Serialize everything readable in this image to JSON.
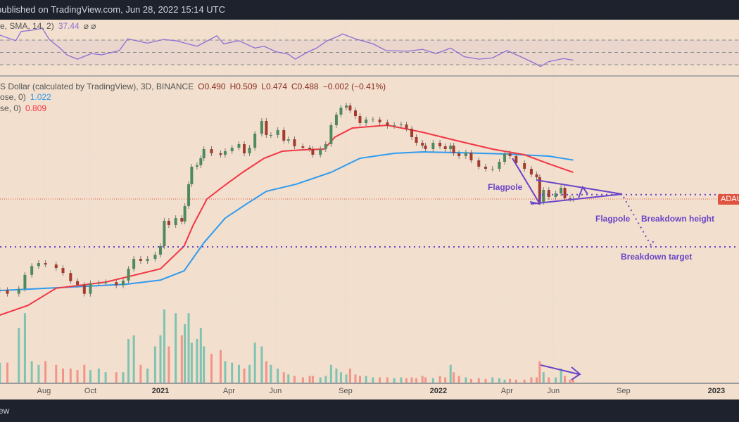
{
  "header": {
    "published_text": "published on TradingView.com, Jun 28, 2022 15:14 UTC"
  },
  "footer": {
    "brand_text": "ew"
  },
  "rsi_legend": {
    "label": "e, SMA, 14, 2)",
    "value": "37.44",
    "icons": "⌀ ⌀"
  },
  "main_legend": {
    "symbol": "S Dollar (calculated by TradingView), 3D, BINANCE",
    "open": "O0.490",
    "high": "H0.509",
    "low": "L0.474",
    "close": "C0.488",
    "change": "−0.002 (−0.41%)",
    "ma1_label": "ose, 0)",
    "ma1_value": "1.022",
    "ma2_label": "se, 0)",
    "ma2_value": "0.809"
  },
  "price_label": "ADAU",
  "annotations": {
    "flagpole_1": "Flagpole",
    "flagpole_2": "Flagpole",
    "breakdown_height": "Breakdown height",
    "breakdown_target": "Breakdown target"
  },
  "colors": {
    "background": "#f2dfcd",
    "candle_up": "#4f8a5e",
    "candle_down": "#a33a2e",
    "volume_up": "#7fc3b2",
    "volume_down": "#f39488",
    "ma_blue": "#2e9bf0",
    "ma_red": "#f23645",
    "annotation": "#6a45c8",
    "rsi": "#8e6fd6"
  },
  "chart_data": {
    "type": "candlestick",
    "price_scale": "log",
    "interval": "3D",
    "grid": true,
    "x_ticks": [
      {
        "label": "Aug",
        "date": "2020-08-01",
        "year": false
      },
      {
        "label": "Oct",
        "date": "2020-10-01",
        "year": false
      },
      {
        "label": "2021",
        "date": "2021-01-01",
        "year": true
      },
      {
        "label": "Apr",
        "date": "2021-04-01",
        "year": false
      },
      {
        "label": "Jun",
        "date": "2021-06-01",
        "year": false
      },
      {
        "label": "Sep",
        "date": "2021-09-01",
        "year": false
      },
      {
        "label": "2022",
        "date": "2022-01-01",
        "year": true
      },
      {
        "label": "Apr",
        "date": "2022-04-01",
        "year": false
      },
      {
        "label": "Jun",
        "date": "2022-06-01",
        "year": false
      },
      {
        "label": "Sep",
        "date": "2022-09-01",
        "year": false
      },
      {
        "label": "2023",
        "date": "2023-01-01",
        "year": true
      }
    ],
    "current_price": 0.488,
    "breakdown_target_price": 0.197,
    "pennant_resistance_price": 0.53,
    "price": [
      [
        "2020-06-04",
        0.087
      ],
      [
        "2020-06-14",
        0.081
      ],
      [
        "2020-06-29",
        0.089
      ],
      [
        "2020-07-07",
        0.116
      ],
      [
        "2020-07-16",
        0.137
      ],
      [
        "2020-07-25",
        0.145
      ],
      [
        "2020-08-03",
        0.141
      ],
      [
        "2020-08-17",
        0.132
      ],
      [
        "2020-08-26",
        0.12
      ],
      [
        "2020-09-05",
        0.103
      ],
      [
        "2020-09-14",
        0.096
      ],
      [
        "2020-09-23",
        0.081
      ],
      [
        "2020-10-01",
        0.099
      ],
      [
        "2020-10-12",
        0.099
      ],
      [
        "2020-10-21",
        0.101
      ],
      [
        "2020-11-04",
        0.095
      ],
      [
        "2020-11-13",
        0.104
      ],
      [
        "2020-11-20",
        0.13
      ],
      [
        "2020-11-27",
        0.157
      ],
      [
        "2020-12-06",
        0.151
      ],
      [
        "2020-12-15",
        0.157
      ],
      [
        "2020-12-25",
        0.17
      ],
      [
        "2021-01-01",
        0.2
      ],
      [
        "2021-01-06",
        0.323
      ],
      [
        "2021-01-12",
        0.298
      ],
      [
        "2021-01-21",
        0.34
      ],
      [
        "2021-01-29",
        0.319
      ],
      [
        "2021-02-02",
        0.427
      ],
      [
        "2021-02-07",
        0.646
      ],
      [
        "2021-02-11",
        0.901
      ],
      [
        "2021-02-18",
        0.926
      ],
      [
        "2021-02-23",
        1.057
      ],
      [
        "2021-02-27",
        1.258
      ],
      [
        "2021-03-09",
        1.161
      ],
      [
        "2021-03-21",
        1.13
      ],
      [
        "2021-03-27",
        1.208
      ],
      [
        "2021-04-05",
        1.291
      ],
      [
        "2021-04-14",
        1.381
      ],
      [
        "2021-04-21",
        1.161
      ],
      [
        "2021-04-28",
        1.291
      ],
      [
        "2021-05-05",
        1.686
      ],
      [
        "2021-05-14",
        2.144
      ],
      [
        "2021-05-20",
        1.642
      ],
      [
        "2021-05-26",
        1.642
      ],
      [
        "2021-06-04",
        1.803
      ],
      [
        "2021-06-12",
        1.476
      ],
      [
        "2021-06-18",
        1.515
      ],
      [
        "2021-06-26",
        1.326
      ],
      [
        "2021-07-07",
        1.291
      ],
      [
        "2021-07-16",
        1.258
      ],
      [
        "2021-07-20",
        1.13
      ],
      [
        "2021-07-30",
        1.258
      ],
      [
        "2021-08-06",
        1.381
      ],
      [
        "2021-08-13",
        1.979
      ],
      [
        "2021-08-20",
        2.417
      ],
      [
        "2021-08-26",
        2.762
      ],
      [
        "2021-09-02",
        2.874
      ],
      [
        "2021-09-07",
        2.618
      ],
      [
        "2021-09-14",
        2.352
      ],
      [
        "2021-09-20",
        2.06
      ],
      [
        "2021-09-28",
        2.202
      ],
      [
        "2021-10-07",
        2.202
      ],
      [
        "2021-10-16",
        2.087
      ],
      [
        "2021-10-26",
        1.953
      ],
      [
        "2021-11-04",
        1.979
      ],
      [
        "2021-11-13",
        2.006
      ],
      [
        "2021-11-20",
        1.851
      ],
      [
        "2021-11-27",
        1.578
      ],
      [
        "2021-12-03",
        1.418
      ],
      [
        "2021-12-11",
        1.344
      ],
      [
        "2021-12-15",
        1.258
      ],
      [
        "2021-12-25",
        1.418
      ],
      [
        "2022-01-03",
        1.326
      ],
      [
        "2022-01-10",
        1.258
      ],
      [
        "2022-01-17",
        1.344
      ],
      [
        "2022-01-21",
        1.161
      ],
      [
        "2022-01-28",
        1.1
      ],
      [
        "2022-02-06",
        1.177
      ],
      [
        "2022-02-13",
        1.016
      ],
      [
        "2022-02-23",
        0.901
      ],
      [
        "2022-03-04",
        0.866
      ],
      [
        "2022-03-13",
        0.866
      ],
      [
        "2022-03-22",
        0.989
      ],
      [
        "2022-03-29",
        1.161
      ],
      [
        "2022-04-05",
        1.1
      ],
      [
        "2022-04-13",
        0.963
      ],
      [
        "2022-04-24",
        0.866
      ],
      [
        "2022-05-03",
        0.778
      ],
      [
        "2022-05-10",
        0.738
      ],
      [
        "2022-05-14",
        0.463
      ],
      [
        "2022-05-19",
        0.58
      ],
      [
        "2022-05-26",
        0.508
      ],
      [
        "2022-06-04",
        0.543
      ],
      [
        "2022-06-11",
        0.604
      ],
      [
        "2022-06-16",
        0.495
      ],
      [
        "2022-06-23",
        0.49
      ],
      [
        "2022-06-27",
        0.488
      ]
    ],
    "volume_relative_pct": [
      28,
      28,
      75,
      95,
      30,
      25,
      30,
      25,
      20,
      20,
      18,
      25,
      18,
      20,
      15,
      15,
      15,
      60,
      65,
      25,
      20,
      50,
      65,
      100,
      50,
      95,
      65,
      80,
      95,
      55,
      60,
      75,
      50,
      40,
      45,
      30,
      28,
      25,
      20,
      25,
      55,
      50,
      30,
      25,
      20,
      15,
      12,
      10,
      8,
      10,
      10,
      8,
      10,
      25,
      20,
      15,
      12,
      20,
      12,
      10,
      10,
      8,
      8,
      8,
      7,
      8,
      7,
      8,
      7,
      10,
      8,
      7,
      10,
      8,
      25,
      15,
      10,
      8,
      6,
      7,
      6,
      8,
      7,
      5,
      6,
      5,
      5,
      8,
      8,
      30,
      15,
      8,
      8,
      20,
      10,
      5,
      5
    ],
    "ma_blue": [
      [
        "2020-06-04",
        0.086
      ],
      [
        "2020-09-05",
        0.092
      ],
      [
        "2020-11-17",
        0.097
      ],
      [
        "2021-01-01",
        0.105
      ],
      [
        "2021-02-01",
        0.125
      ],
      [
        "2021-02-27",
        0.213
      ],
      [
        "2021-03-27",
        0.34
      ],
      [
        "2021-04-24",
        0.445
      ],
      [
        "2021-05-20",
        0.565
      ],
      [
        "2021-06-28",
        0.646
      ],
      [
        "2021-08-13",
        0.81
      ],
      [
        "2021-09-20",
        1.057
      ],
      [
        "2021-11-04",
        1.161
      ],
      [
        "2021-12-11",
        1.192
      ],
      [
        "2022-01-25",
        1.177
      ],
      [
        "2022-04-01",
        1.145
      ],
      [
        "2022-05-26",
        1.1
      ],
      [
        "2022-06-27",
        1.022
      ]
    ],
    "ma_red": [
      [
        "2020-06-04",
        0.054
      ],
      [
        "2020-07-11",
        0.065
      ],
      [
        "2020-08-17",
        0.09
      ],
      [
        "2020-10-21",
        0.101
      ],
      [
        "2021-01-01",
        0.13
      ],
      [
        "2021-02-01",
        0.2
      ],
      [
        "2021-02-13",
        0.298
      ],
      [
        "2021-03-03",
        0.488
      ],
      [
        "2021-03-27",
        0.637
      ],
      [
        "2021-04-19",
        0.81
      ],
      [
        "2021-05-17",
        1.057
      ],
      [
        "2021-06-10",
        1.208
      ],
      [
        "2021-07-07",
        1.241
      ],
      [
        "2021-08-04",
        1.258
      ],
      [
        "2021-08-18",
        1.578
      ],
      [
        "2021-09-10",
        1.876
      ],
      [
        "2021-10-26",
        1.979
      ],
      [
        "2021-12-11",
        1.732
      ],
      [
        "2022-01-25",
        1.476
      ],
      [
        "2022-03-13",
        1.258
      ],
      [
        "2022-04-24",
        1.13
      ],
      [
        "2022-05-26",
        0.951
      ],
      [
        "2022-06-27",
        0.809
      ]
    ],
    "rsi": {
      "levels": [
        70,
        50,
        30
      ],
      "values": [
        [
          "2020-06-04",
          78
        ],
        [
          "2020-06-25",
          69
        ],
        [
          "2020-07-02",
          84
        ],
        [
          "2020-07-16",
          86
        ],
        [
          "2020-07-30",
          89
        ],
        [
          "2020-08-08",
          71
        ],
        [
          "2020-08-22",
          57
        ],
        [
          "2020-08-31",
          46
        ],
        [
          "2020-09-14",
          39
        ],
        [
          "2020-10-02",
          48
        ],
        [
          "2020-10-16",
          46
        ],
        [
          "2020-11-08",
          53
        ],
        [
          "2020-11-19",
          72
        ],
        [
          "2020-12-15",
          65
        ],
        [
          "2021-01-05",
          71
        ],
        [
          "2021-01-21",
          69
        ],
        [
          "2021-02-18",
          60
        ],
        [
          "2021-03-04",
          69
        ],
        [
          "2021-03-16",
          77
        ],
        [
          "2021-03-25",
          64
        ],
        [
          "2021-04-14",
          69
        ],
        [
          "2021-05-05",
          57
        ],
        [
          "2021-05-17",
          60
        ],
        [
          "2021-06-02",
          51
        ],
        [
          "2021-06-18",
          47
        ],
        [
          "2021-06-27",
          39
        ],
        [
          "2021-07-14",
          51
        ],
        [
          "2021-07-25",
          57
        ],
        [
          "2021-08-08",
          69
        ],
        [
          "2021-08-22",
          76
        ],
        [
          "2021-08-28",
          80
        ],
        [
          "2021-09-14",
          72
        ],
        [
          "2021-10-07",
          64
        ],
        [
          "2021-10-24",
          53
        ],
        [
          "2021-11-22",
          52
        ],
        [
          "2021-12-11",
          55
        ],
        [
          "2021-12-29",
          48
        ],
        [
          "2022-01-17",
          57
        ],
        [
          "2022-02-04",
          43
        ],
        [
          "2022-02-23",
          39
        ],
        [
          "2022-03-13",
          41
        ],
        [
          "2022-04-01",
          53
        ],
        [
          "2022-04-19",
          43
        ],
        [
          "2022-05-08",
          32
        ],
        [
          "2022-05-15",
          27
        ],
        [
          "2022-05-26",
          35
        ],
        [
          "2022-06-14",
          40
        ],
        [
          "2022-06-27",
          37.44
        ]
      ]
    }
  }
}
